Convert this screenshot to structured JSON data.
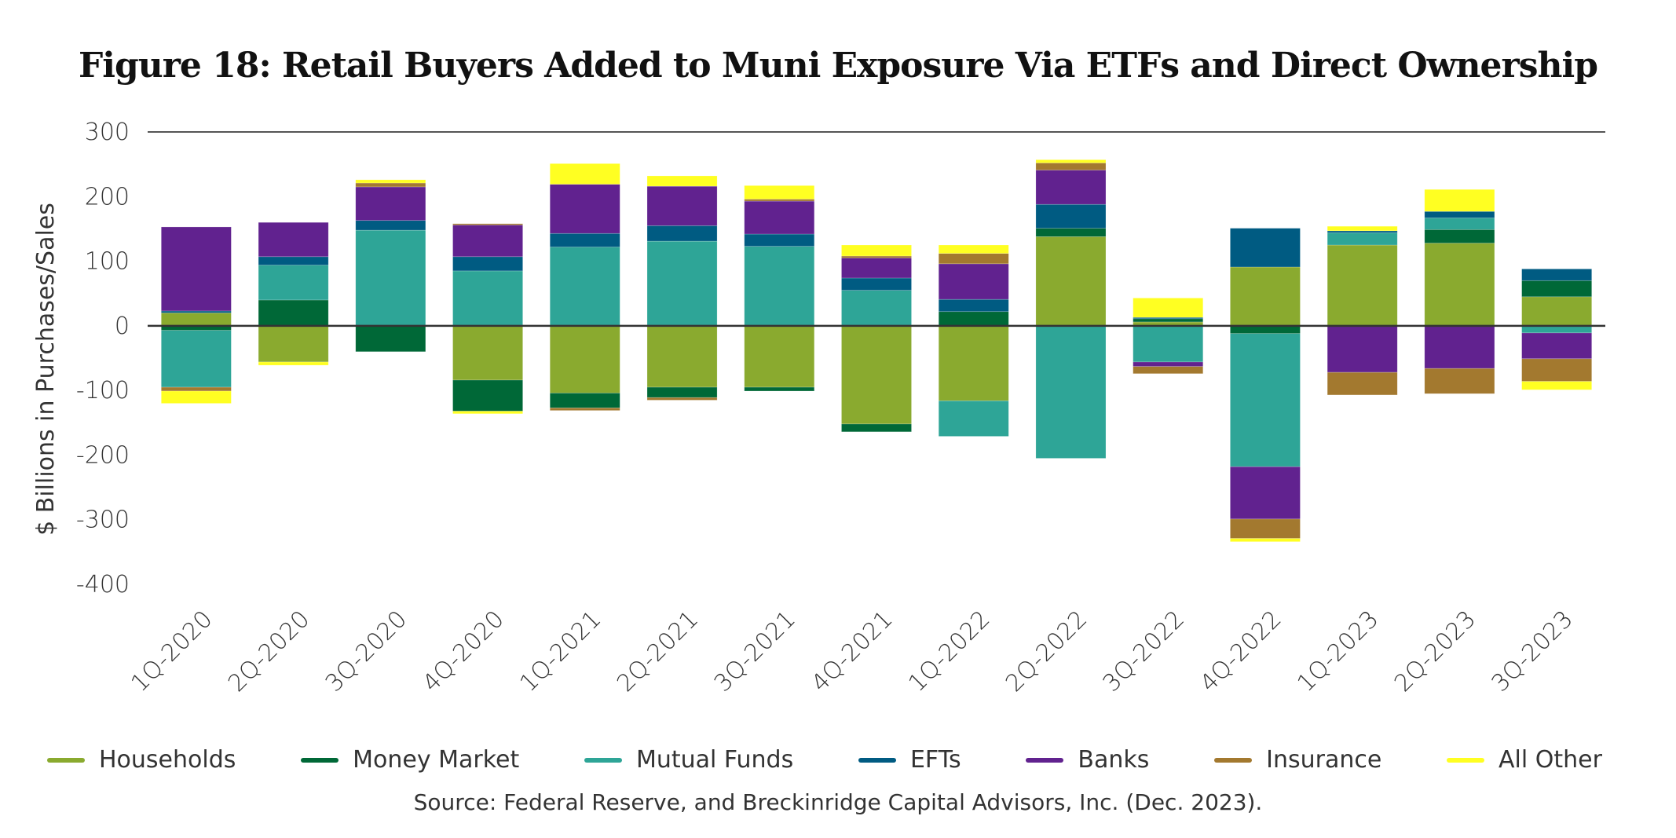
{
  "chart_data": {
    "type": "bar",
    "stacked": true,
    "title": "Figure 18: Retail Buyers Added to Muni Exposure Via ETFs and Direct Ownership",
    "xlabel": "",
    "ylabel": "$ Billions in Purchases/Sales",
    "ylim": [
      -400,
      300
    ],
    "yticks": [
      300,
      200,
      100,
      0,
      -100,
      -200,
      -300,
      -400
    ],
    "ytick_labels": [
      "300",
      "200",
      "100",
      "0",
      "-100",
      "-200",
      "-300",
      "-400"
    ],
    "grid": false,
    "legend_position": "bottom",
    "categories": [
      "1Q-2020",
      "2Q-2020",
      "3Q-2020",
      "4Q-2020",
      "1Q-2021",
      "2Q-2021",
      "3Q-2021",
      "4Q-2021",
      "1Q-2022",
      "2Q-2022",
      "3Q-2022",
      "4Q-2022",
      "1Q-2023",
      "2Q-2023",
      "3Q-2023"
    ],
    "series": [
      {
        "name": "Households",
        "color": "#8aaa2f",
        "values": [
          20,
          -56,
          0,
          -84,
          -104,
          -95,
          -95,
          -152,
          -116,
          138,
          6,
          91,
          125,
          128,
          45
        ]
      },
      {
        "name": "Money Market",
        "color": "#006837",
        "values": [
          -7,
          40,
          -40,
          -48,
          -23,
          -16,
          -6,
          -12,
          22,
          13,
          5,
          -12,
          0,
          21,
          25
        ]
      },
      {
        "name": "Mutual Funds",
        "color": "#2ea597",
        "values": [
          -88,
          54,
          148,
          85,
          122,
          131,
          123,
          55,
          -55,
          -205,
          -56,
          -206,
          19,
          18,
          -11
        ]
      },
      {
        "name": "EFTs",
        "color": "#005b82",
        "values": [
          3,
          13,
          15,
          22,
          21,
          24,
          19,
          19,
          19,
          37,
          2,
          60,
          3,
          10,
          18
        ]
      },
      {
        "name": "Banks",
        "color": "#61228f",
        "values": [
          130,
          53,
          52,
          49,
          76,
          61,
          51,
          31,
          55,
          53,
          -7,
          -81,
          -72,
          -66,
          -40
        ]
      },
      {
        "name": "Insurance",
        "color": "#a3792f",
        "values": [
          -6,
          0,
          6,
          2,
          -4,
          -4,
          3,
          3,
          16,
          11,
          -11,
          -30,
          -35,
          -39,
          -35
        ]
      },
      {
        "name": "All Other",
        "color": "#ffff22",
        "values": [
          -19,
          -5,
          5,
          -4,
          32,
          16,
          21,
          17,
          13,
          5,
          30,
          -5,
          7,
          34,
          -13
        ]
      }
    ],
    "source": "Source: Federal Reserve, and Breckinridge Capital Advisors, Inc. (Dec. 2023)."
  }
}
